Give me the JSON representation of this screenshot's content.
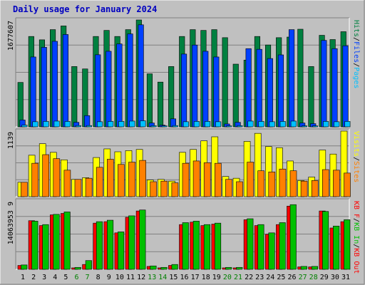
{
  "chart_data": {
    "type": "bar",
    "title": "Daily usage for January 2024",
    "categories": [
      "1",
      "2",
      "3",
      "4",
      "5",
      "6",
      "7",
      "8",
      "9",
      "10",
      "11",
      "12",
      "13",
      "14",
      "15",
      "16",
      "17",
      "18",
      "19",
      "20",
      "21",
      "22",
      "23",
      "24",
      "25",
      "26",
      "27",
      "28",
      "29",
      "30",
      "31"
    ],
    "weekend_days": [
      6,
      7,
      13,
      14,
      20,
      21,
      27,
      28
    ],
    "colors": {
      "hits": "#008040",
      "files": "#0040ff",
      "pages": "#00c0ff",
      "visits": "#ffff00",
      "sites": "#ff8000",
      "kb_in": "#00c000",
      "kb_out": "#ff0000",
      "weekend_label": "#008000",
      "weekday_label": "#000000"
    },
    "panels": [
      {
        "id": "hits",
        "ymax_label": "1677607",
        "ymax": 1677607,
        "series": [
          {
            "name": "Hits",
            "key": "hits",
            "values": [
              697240,
              1418484,
              1365744,
              1525987,
              1584014,
              946560,
              908887,
              1418484,
              1513895,
              1418484,
              1525987,
              1677607,
              832158,
              702436,
              946560,
              1418484,
              1525987,
              1513895,
              1525987,
              1399704,
              984138,
              1047456,
              1418484,
              1284996,
              1399704,
              1409094,
              1532236,
              946560,
              1436953,
              1370256,
              1493532
            ]
          },
          {
            "name": "Files",
            "key": "files",
            "values": [
              107416,
              1096584,
              1248210,
              1342566,
              1449032,
              70596,
              176104,
              1131240,
              1186146,
              1301592,
              1458810,
              1601328,
              60000,
              27000,
              125382,
              1142220,
              1284096,
              1186146,
              1096584,
              45000,
              70596,
              1227264,
              1217040,
              1072300,
              1129344,
              1525987,
              60000,
              50000,
              1356840,
              1227264,
              1272380
            ]
          },
          {
            "name": "Pages",
            "key": "pages",
            "values": [
              27000,
              80000,
              85000,
              90000,
              85000,
              20000,
              20000,
              80000,
              85000,
              85000,
              90000,
              95000,
              18000,
              15000,
              20000,
              80000,
              85000,
              85000,
              80000,
              15000,
              18000,
              90000,
              85000,
              80000,
              85000,
              90000,
              15000,
              15000,
              85000,
              80000,
              85000
            ]
          }
        ]
      },
      {
        "id": "visits",
        "ymax_label": "1139",
        "ymax": 1139,
        "series": [
          {
            "name": "Visits",
            "key": "visits",
            "values": [
              250,
              720,
              920,
              770,
              640,
              300,
              330,
              680,
              830,
              780,
              800,
              820,
              290,
              300,
              270,
              770,
              820,
              970,
              1040,
              350,
              320,
              960,
              1100,
              870,
              850,
              620,
              280,
              340,
              810,
              740,
              1139
            ]
          },
          {
            "name": "Sites",
            "key": "sites",
            "values": [
              250,
              580,
              730,
              660,
              460,
              300,
              320,
              510,
              650,
              560,
              600,
              630,
              260,
              270,
              240,
              580,
              620,
              590,
              580,
              300,
              260,
              600,
              450,
              430,
              480,
              450,
              270,
              280,
              470,
              460,
              410
            ]
          }
        ]
      },
      {
        "id": "kbytes",
        "ymax_label": "14063953 9",
        "ymax": 140639539,
        "series": [
          {
            "name": "KB F",
            "key": "kb_f",
            "values": [
              8000000,
              100000000,
              90000000,
              112000000,
              115000000,
              3000000,
              10000000,
              95000000,
              98000000,
              75000000,
              107000000,
              120000000,
              6000000,
              3000000,
              8000000,
              92000000,
              97000000,
              90000000,
              93000000,
              3000000,
              3000000,
              102000000,
              90000000,
              72000000,
              92000000,
              130000000,
              5000000,
              5000000,
              120000000,
              85000000,
              98000000
            ]
          },
          {
            "name": "KB In",
            "key": "kb_in",
            "values": [
              1000000,
              2000000,
              1800000,
              2200000,
              2300000,
              500000,
              800000,
              1900000,
              1900000,
              1700000,
              2100000,
              2300000,
              600000,
              500000,
              600000,
              1900000,
              1900000,
              1800000,
              1800000,
              500000,
              500000,
              2000000,
              1800000,
              1600000,
              1800000,
              2400000,
              500000,
              500000,
              2300000,
              1700000,
              1900000
            ]
          },
          {
            "name": "KB Out",
            "key": "kb_out",
            "values": [
              9000000,
              99000000,
              92000000,
              113000000,
              118000000,
              4000000,
              18000000,
              98000000,
              101000000,
              77000000,
              110000000,
              122000000,
              7000000,
              4000000,
              10000000,
              96000000,
              99000000,
              92000000,
              95000000,
              4000000,
              4000000,
              104000000,
              92000000,
              75000000,
              96000000,
              133000000,
              6000000,
              6000000,
              119000000,
              89000000,
              102000000
            ]
          }
        ]
      }
    ],
    "legend": {
      "hits_panel": [
        "Hits",
        "/",
        "Files",
        "/",
        "Pages"
      ],
      "visits_panel": [
        "Visits",
        "/",
        "Sites"
      ],
      "kbytes_panel": [
        "KB F",
        "/",
        "KB In",
        "/",
        "KB Out"
      ]
    }
  }
}
